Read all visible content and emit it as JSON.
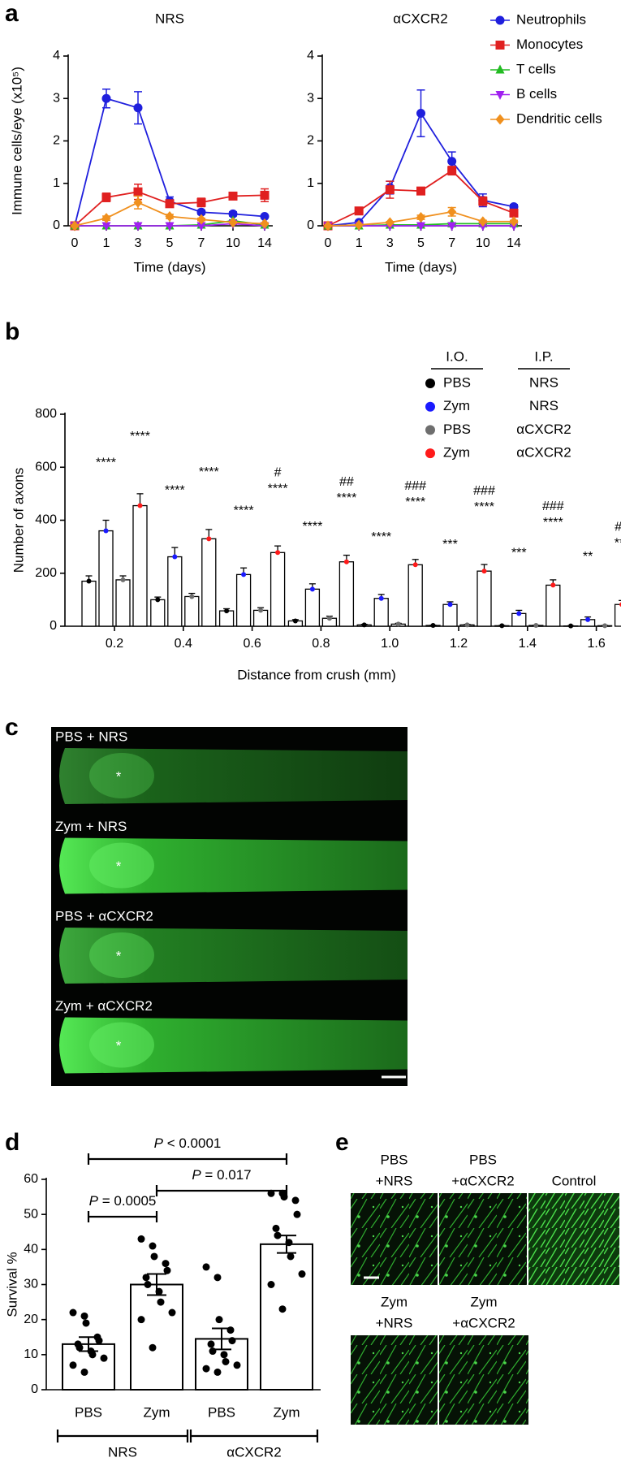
{
  "panel_labels": [
    "a",
    "b",
    "c",
    "d",
    "e"
  ],
  "chart_data": [
    {
      "type": "line",
      "title": "NRS",
      "y_label": "Immune cells/eye (x10⁵)",
      "x_label": "Time (days)",
      "categories": [
        "0",
        "1",
        "3",
        "5",
        "7",
        "10",
        "14"
      ],
      "ylim": [
        0,
        4
      ],
      "yticks": [
        0,
        1,
        2,
        3,
        4
      ],
      "series": [
        {
          "name": "Neutrophils",
          "color": "#1f1fdd",
          "marker": "circle",
          "values": [
            0,
            3.0,
            2.78,
            0.58,
            0.32,
            0.28,
            0.22
          ],
          "errors": [
            0,
            0.22,
            0.38,
            0.1,
            0.05,
            0.05,
            0.03
          ]
        },
        {
          "name": "Monocytes",
          "color": "#e02020",
          "marker": "square",
          "values": [
            0,
            0.67,
            0.8,
            0.52,
            0.55,
            0.7,
            0.72
          ],
          "errors": [
            0,
            0.1,
            0.18,
            0.08,
            0.1,
            0.08,
            0.15
          ]
        },
        {
          "name": "T cells",
          "color": "#22bb22",
          "marker": "triangle",
          "values": [
            0,
            0,
            0,
            0,
            0.02,
            0.12,
            0.02
          ],
          "errors": [
            0,
            0,
            0,
            0,
            0.01,
            0.02,
            0.01
          ]
        },
        {
          "name": "B cells",
          "color": "#a020f0",
          "marker": "triangle-down",
          "values": [
            0,
            0,
            0,
            0,
            0,
            0.05,
            0
          ],
          "errors": [
            0,
            0,
            0,
            0,
            0,
            0.02,
            0
          ]
        },
        {
          "name": "Dendritic cells",
          "color": "#f0901e",
          "marker": "diamond",
          "values": [
            0,
            0.18,
            0.55,
            0.22,
            0.15,
            0.08,
            0.05
          ],
          "errors": [
            0,
            0.05,
            0.15,
            0.05,
            0.03,
            0.02,
            0.01
          ]
        }
      ]
    },
    {
      "type": "line",
      "title": "αCXCR2",
      "x_label": "Time (days)",
      "categories": [
        "0",
        "1",
        "3",
        "5",
        "7",
        "10",
        "14"
      ],
      "ylim": [
        0,
        4
      ],
      "yticks": [
        0,
        1,
        2,
        3,
        4
      ],
      "series": [
        {
          "color": "#1f1fdd",
          "marker": "circle",
          "values": [
            0,
            0.08,
            0.9,
            2.65,
            1.52,
            0.6,
            0.45
          ],
          "errors": [
            0,
            0.02,
            0.15,
            0.55,
            0.22,
            0.15,
            0.05
          ]
        },
        {
          "color": "#e02020",
          "marker": "square",
          "values": [
            0,
            0.35,
            0.85,
            0.82,
            1.3,
            0.58,
            0.3
          ],
          "errors": [
            0,
            0.05,
            0.2,
            0.05,
            0.1,
            0.1,
            0.08
          ]
        },
        {
          "color": "#22bb22",
          "marker": "triangle",
          "values": [
            0,
            0,
            0.02,
            0.02,
            0.05,
            0.05,
            0.05
          ],
          "errors": [
            0,
            0,
            0.01,
            0.01,
            0.02,
            0.02,
            0.02
          ]
        },
        {
          "color": "#a020f0",
          "marker": "triangle-down",
          "values": [
            0,
            0,
            0,
            0,
            0,
            0,
            0
          ],
          "errors": [
            0,
            0,
            0,
            0,
            0,
            0,
            0
          ]
        },
        {
          "color": "#f0901e",
          "marker": "diamond",
          "values": [
            0,
            0.02,
            0.08,
            0.2,
            0.33,
            0.1,
            0.1
          ],
          "errors": [
            0,
            0,
            0.02,
            0.05,
            0.1,
            0.03,
            0.03
          ]
        }
      ]
    },
    {
      "type": "bar",
      "y_label": "Number of axons",
      "x_label": "Distance from crush (mm)",
      "categories": [
        "0.2",
        "0.4",
        "0.6",
        "0.8",
        "1.0",
        "1.2",
        "1.4",
        "1.6"
      ],
      "ylim": [
        0,
        800
      ],
      "yticks": [
        0,
        200,
        400,
        600,
        800
      ],
      "legend_headers": [
        "I.O.",
        "I.P."
      ],
      "series": [
        {
          "io": "PBS",
          "ip": "NRS",
          "color": "#000000",
          "values": [
            170,
            100,
            58,
            20,
            5,
            3,
            2,
            1
          ],
          "errors": [
            20,
            10,
            8,
            5,
            2,
            1,
            1,
            1
          ]
        },
        {
          "io": "Zym",
          "ip": "NRS",
          "color": "#1a1aff",
          "values": [
            360,
            262,
            195,
            140,
            105,
            82,
            48,
            25
          ],
          "errors": [
            40,
            35,
            25,
            20,
            15,
            10,
            12,
            10
          ],
          "stars": [
            "****",
            "****",
            "****",
            "****",
            "****",
            "***",
            "***",
            "**"
          ]
        },
        {
          "io": "PBS",
          "ip": "αCXCR2",
          "color": "#6e6e6e",
          "values": [
            175,
            112,
            60,
            30,
            8,
            5,
            3,
            2
          ],
          "errors": [
            15,
            12,
            10,
            8,
            3,
            2,
            1,
            1
          ]
        },
        {
          "io": "Zym",
          "ip": "αCXCR2",
          "color": "#ff1a1a",
          "values": [
            455,
            330,
            278,
            243,
            232,
            208,
            155,
            82
          ],
          "errors": [
            45,
            35,
            25,
            25,
            20,
            25,
            20,
            15
          ],
          "stars": [
            "****",
            "****",
            "****",
            "****",
            "****",
            "****",
            "****",
            "***"
          ],
          "hashes": [
            null,
            null,
            "#",
            "##",
            "###",
            "###",
            "###",
            "##"
          ]
        }
      ]
    },
    {
      "type": "bar-scatter",
      "y_label": "Survival %",
      "categories": [
        "PBS",
        "Zym",
        "PBS",
        "Zym"
      ],
      "groups": [
        "NRS",
        "αCXCR2"
      ],
      "ylim": [
        0,
        60
      ],
      "yticks": [
        0,
        10,
        20,
        30,
        40,
        50,
        60
      ],
      "values": [
        13,
        30,
        14.5,
        41.5
      ],
      "errors": [
        2,
        3,
        3,
        2.5
      ],
      "points": [
        [
          22,
          21,
          19,
          15,
          14,
          13,
          12,
          11,
          10,
          9,
          7,
          5
        ],
        [
          43,
          41,
          38,
          36,
          34,
          32,
          30,
          28,
          25,
          22,
          20,
          12
        ],
        [
          35,
          32,
          20,
          17,
          14,
          13,
          11,
          10,
          8,
          7,
          6,
          5
        ],
        [
          56,
          56,
          55,
          54,
          50,
          46,
          44,
          42,
          38,
          33,
          30,
          23
        ]
      ],
      "comparisons": [
        {
          "italic": "P",
          "text": " = 0.0005"
        },
        {
          "italic": "P",
          "text": " = 0.017"
        },
        {
          "italic": "P",
          "text": " < 0.0001"
        }
      ]
    }
  ],
  "micrographs": {
    "c": [
      {
        "label": "PBS + NRS",
        "marker": "*"
      },
      {
        "label": "Zym + NRS",
        "marker": "*"
      },
      {
        "label": "PBS + αCXCR2",
        "marker": "*"
      },
      {
        "label": "Zym + αCXCR2",
        "marker": "*"
      }
    ],
    "e": [
      {
        "label": [
          "PBS",
          "+NRS"
        ]
      },
      {
        "label": [
          "PBS",
          "+αCXCR2"
        ]
      },
      {
        "label": [
          "Control"
        ]
      },
      {
        "label": [
          "Zym",
          "+NRS"
        ]
      },
      {
        "label": [
          "Zym",
          "+αCXCR2"
        ]
      }
    ]
  }
}
